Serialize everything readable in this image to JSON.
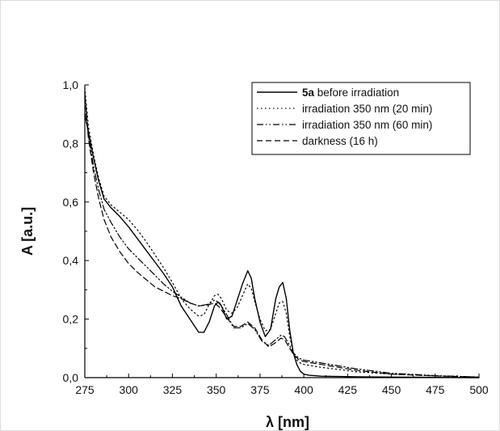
{
  "chart_data": {
    "type": "line",
    "title": "",
    "xlabel": "λ [nm]",
    "ylabel": "A [a.u.]",
    "xlim": [
      275,
      500
    ],
    "ylim": [
      0.0,
      1.0
    ],
    "x_ticks": [
      "275",
      "300",
      "325",
      "350",
      "375",
      "400",
      "425",
      "450",
      "475",
      "500"
    ],
    "y_ticks": [
      "0,0",
      "0,2",
      "0,4",
      "0,6",
      "0,8",
      "1,0"
    ],
    "grid": false,
    "legend_position": "top-right",
    "series": [
      {
        "name_bold": "5a",
        "name": " before irradiation",
        "style": "solid",
        "x": [
          275,
          277,
          280,
          283,
          286,
          290,
          295,
          300,
          305,
          310,
          315,
          320,
          325,
          330,
          335,
          340,
          343,
          346,
          349,
          351,
          353,
          356,
          359,
          362,
          365,
          368,
          370,
          372,
          375,
          378,
          381,
          384,
          386,
          388,
          390,
          392,
          394,
          396,
          398,
          400,
          403,
          410,
          420,
          430,
          450,
          475,
          500
        ],
        "y": [
          0.9,
          0.84,
          0.75,
          0.67,
          0.61,
          0.58,
          0.55,
          0.515,
          0.475,
          0.435,
          0.395,
          0.355,
          0.31,
          0.245,
          0.2,
          0.155,
          0.155,
          0.19,
          0.245,
          0.258,
          0.245,
          0.2,
          0.21,
          0.265,
          0.32,
          0.365,
          0.34,
          0.27,
          0.19,
          0.14,
          0.165,
          0.27,
          0.31,
          0.325,
          0.27,
          0.16,
          0.085,
          0.045,
          0.022,
          0.012,
          0.008,
          0.005,
          0.004,
          0.003,
          0.002,
          0.001,
          0.0
        ]
      },
      {
        "name": "irradiation 350 nm (20 min)",
        "style": "dotted",
        "x": [
          275,
          277,
          280,
          283,
          286,
          290,
          295,
          300,
          305,
          310,
          315,
          320,
          325,
          330,
          335,
          340,
          343,
          346,
          349,
          351,
          353,
          356,
          359,
          362,
          365,
          368,
          370,
          372,
          375,
          378,
          381,
          384,
          386,
          388,
          390,
          392,
          394,
          396,
          398,
          400,
          405,
          410,
          420,
          430,
          450,
          475,
          500
        ],
        "y": [
          0.99,
          0.86,
          0.76,
          0.68,
          0.62,
          0.59,
          0.565,
          0.54,
          0.505,
          0.465,
          0.42,
          0.375,
          0.325,
          0.27,
          0.235,
          0.21,
          0.215,
          0.25,
          0.28,
          0.285,
          0.27,
          0.23,
          0.22,
          0.24,
          0.28,
          0.32,
          0.305,
          0.26,
          0.2,
          0.16,
          0.165,
          0.22,
          0.255,
          0.26,
          0.22,
          0.14,
          0.085,
          0.06,
          0.05,
          0.045,
          0.04,
          0.035,
          0.028,
          0.02,
          0.012,
          0.006,
          0.002
        ]
      },
      {
        "name": "irradiation 350 nm (60 min)",
        "style": "dashdotdot",
        "x": [
          275,
          277,
          280,
          283,
          286,
          290,
          295,
          300,
          305,
          310,
          315,
          320,
          325,
          330,
          335,
          340,
          345,
          349,
          352,
          356,
          360,
          364,
          368,
          372,
          376,
          380,
          384,
          387,
          389,
          391,
          394,
          397,
          400,
          405,
          410,
          420,
          430,
          450,
          475,
          500
        ],
        "y": [
          0.97,
          0.83,
          0.72,
          0.64,
          0.575,
          0.53,
          0.48,
          0.44,
          0.41,
          0.38,
          0.35,
          0.32,
          0.295,
          0.275,
          0.255,
          0.245,
          0.25,
          0.265,
          0.255,
          0.215,
          0.17,
          0.17,
          0.185,
          0.165,
          0.125,
          0.11,
          0.13,
          0.145,
          0.14,
          0.12,
          0.085,
          0.067,
          0.06,
          0.055,
          0.05,
          0.04,
          0.03,
          0.015,
          0.007,
          0.002
        ]
      },
      {
        "name": "darkness (16 h)",
        "style": "dashed",
        "x": [
          275,
          277,
          280,
          283,
          286,
          290,
          295,
          300,
          305,
          310,
          315,
          320,
          325,
          330,
          335,
          340,
          345,
          349,
          352,
          356,
          360,
          364,
          368,
          372,
          376,
          380,
          384,
          387,
          389,
          391,
          394,
          397,
          400,
          405,
          410,
          420,
          430,
          450,
          475,
          500
        ],
        "y": [
          0.96,
          0.82,
          0.7,
          0.61,
          0.54,
          0.48,
          0.43,
          0.39,
          0.36,
          0.335,
          0.31,
          0.295,
          0.28,
          0.27,
          0.255,
          0.245,
          0.248,
          0.255,
          0.24,
          0.205,
          0.175,
          0.175,
          0.19,
          0.17,
          0.13,
          0.105,
          0.12,
          0.135,
          0.13,
          0.11,
          0.08,
          0.062,
          0.055,
          0.05,
          0.045,
          0.035,
          0.025,
          0.012,
          0.006,
          0.002
        ]
      }
    ]
  }
}
